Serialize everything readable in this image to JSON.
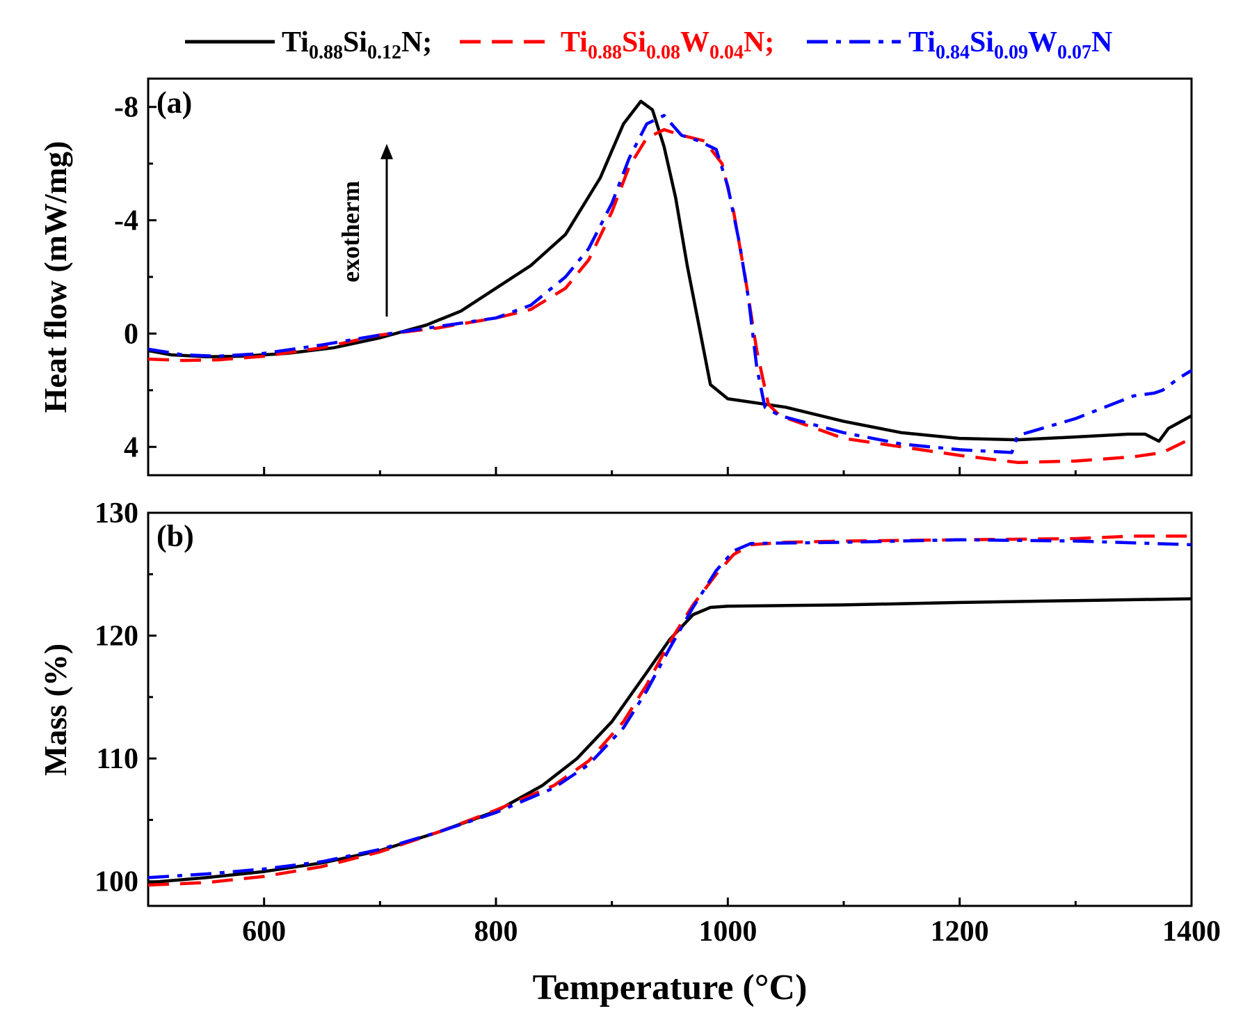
{
  "legend": {
    "entries": [
      {
        "series": "s1",
        "color": "#000000",
        "style": "solid",
        "parts": [
          [
            "Ti",
            ""
          ],
          [
            "0.88",
            "sub"
          ],
          [
            "Si",
            ""
          ],
          [
            "0.12",
            "sub"
          ],
          [
            "N;",
            ""
          ]
        ]
      },
      {
        "series": "s2",
        "color": "#ff0000",
        "style": "dash",
        "parts": [
          [
            "Ti",
            ""
          ],
          [
            "0.88",
            "sub"
          ],
          [
            "Si",
            ""
          ],
          [
            "0.08",
            "sub"
          ],
          [
            "W",
            ""
          ],
          [
            "0.04",
            "sub"
          ],
          [
            "N;",
            ""
          ]
        ]
      },
      {
        "series": "s3",
        "color": "#0000ff",
        "style": "dashdot",
        "parts": [
          [
            "Ti",
            ""
          ],
          [
            "0.84",
            "sub"
          ],
          [
            "Si",
            ""
          ],
          [
            "0.09",
            "sub"
          ],
          [
            "W",
            ""
          ],
          [
            "0.07",
            "sub"
          ],
          [
            "N",
            ""
          ]
        ]
      }
    ]
  },
  "chart_data": [
    {
      "type": "line",
      "panel_label": "(a)",
      "ylabel": "Heat flow (mW/mg)",
      "xlabel": "",
      "xlim": [
        500,
        1400
      ],
      "ylim": [
        5,
        -9
      ],
      "y_inverted": true,
      "yticks": [
        -8,
        -4,
        0,
        4
      ],
      "ytick_labels": [
        "-8",
        "-4",
        "0",
        "4"
      ],
      "annotation": {
        "text": "exotherm",
        "arrow": "up",
        "x": 665,
        "y_from": -0.6,
        "y_to": -6.6
      },
      "series": [
        {
          "id": "s1",
          "name": "Ti0.88Si0.12N",
          "color": "#000000",
          "style": "solid",
          "points": [
            [
              500,
              0.6
            ],
            [
              520,
              0.75
            ],
            [
              550,
              0.82
            ],
            [
              580,
              0.8
            ],
            [
              620,
              0.7
            ],
            [
              660,
              0.5
            ],
            [
              700,
              0.15
            ],
            [
              740,
              -0.3
            ],
            [
              770,
              -0.8
            ],
            [
              800,
              -1.6
            ],
            [
              830,
              -2.4
            ],
            [
              860,
              -3.5
            ],
            [
              890,
              -5.5
            ],
            [
              910,
              -7.4
            ],
            [
              925,
              -8.2
            ],
            [
              935,
              -7.9
            ],
            [
              945,
              -6.6
            ],
            [
              955,
              -4.8
            ],
            [
              965,
              -2.4
            ],
            [
              975,
              -0.3
            ],
            [
              985,
              1.8
            ],
            [
              1000,
              2.3
            ],
            [
              1050,
              2.6
            ],
            [
              1100,
              3.1
            ],
            [
              1150,
              3.5
            ],
            [
              1200,
              3.7
            ],
            [
              1250,
              3.75
            ],
            [
              1300,
              3.65
            ],
            [
              1345,
              3.55
            ],
            [
              1360,
              3.55
            ],
            [
              1372,
              3.8
            ],
            [
              1380,
              3.35
            ],
            [
              1400,
              2.9
            ]
          ]
        },
        {
          "id": "s2",
          "name": "Ti0.88Si0.08W0.04N",
          "color": "#ff0000",
          "style": "dash",
          "points": [
            [
              500,
              0.9
            ],
            [
              530,
              0.95
            ],
            [
              560,
              0.93
            ],
            [
              600,
              0.8
            ],
            [
              650,
              0.5
            ],
            [
              700,
              0.05
            ],
            [
              750,
              -0.2
            ],
            [
              800,
              -0.55
            ],
            [
              830,
              -0.85
            ],
            [
              860,
              -1.6
            ],
            [
              880,
              -2.6
            ],
            [
              900,
              -4.3
            ],
            [
              915,
              -5.9
            ],
            [
              930,
              -6.9
            ],
            [
              945,
              -7.2
            ],
            [
              960,
              -7.0
            ],
            [
              980,
              -6.8
            ],
            [
              995,
              -6.0
            ],
            [
              1005,
              -4.3
            ],
            [
              1015,
              -2.0
            ],
            [
              1025,
              0.6
            ],
            [
              1035,
              2.5
            ],
            [
              1045,
              2.9
            ],
            [
              1100,
              3.7
            ],
            [
              1150,
              4.0
            ],
            [
              1200,
              4.3
            ],
            [
              1250,
              4.55
            ],
            [
              1300,
              4.5
            ],
            [
              1350,
              4.35
            ],
            [
              1375,
              4.2
            ],
            [
              1400,
              3.7
            ]
          ]
        },
        {
          "id": "s3",
          "name": "Ti0.84Si0.09W0.07N",
          "color": "#0000ff",
          "style": "dashdot",
          "points": [
            [
              500,
              0.55
            ],
            [
              530,
              0.75
            ],
            [
              560,
              0.8
            ],
            [
              600,
              0.7
            ],
            [
              650,
              0.4
            ],
            [
              700,
              0.05
            ],
            [
              750,
              -0.25
            ],
            [
              800,
              -0.55
            ],
            [
              830,
              -1.0
            ],
            [
              860,
              -2.0
            ],
            [
              880,
              -3.0
            ],
            [
              900,
              -4.6
            ],
            [
              915,
              -6.2
            ],
            [
              930,
              -7.4
            ],
            [
              945,
              -7.7
            ],
            [
              960,
              -7.0
            ],
            [
              975,
              -6.8
            ],
            [
              990,
              -6.5
            ],
            [
              1000,
              -5.2
            ],
            [
              1010,
              -3.2
            ],
            [
              1018,
              -1.2
            ],
            [
              1025,
              1.2
            ],
            [
              1032,
              2.6
            ],
            [
              1045,
              2.9
            ],
            [
              1100,
              3.5
            ],
            [
              1150,
              3.9
            ],
            [
              1200,
              4.1
            ],
            [
              1245,
              4.2
            ],
            [
              1250,
              3.6
            ],
            [
              1300,
              3.0
            ],
            [
              1350,
              2.2
            ],
            [
              1368,
              2.1
            ],
            [
              1375,
              2.0
            ],
            [
              1390,
              1.55
            ],
            [
              1400,
              1.3
            ]
          ]
        }
      ]
    },
    {
      "type": "line",
      "panel_label": "(b)",
      "ylabel": "Mass (%)",
      "xlabel": "Temperature (°C)",
      "xlim": [
        500,
        1400
      ],
      "ylim": [
        98,
        130
      ],
      "yticks": [
        100,
        110,
        120,
        130
      ],
      "ytick_labels": [
        "100",
        "110",
        "120",
        "130"
      ],
      "xticks": [
        600,
        800,
        1000,
        1200,
        1400
      ],
      "xtick_labels": [
        "600",
        "800",
        "1000",
        "1200",
        "1400"
      ],
      "series": [
        {
          "id": "s1",
          "name": "Ti0.88Si0.12N",
          "color": "#000000",
          "style": "solid",
          "points": [
            [
              500,
              99.9
            ],
            [
              550,
              100.3
            ],
            [
              600,
              100.8
            ],
            [
              650,
              101.5
            ],
            [
              700,
              102.5
            ],
            [
              750,
              104.0
            ],
            [
              800,
              105.7
            ],
            [
              840,
              107.8
            ],
            [
              870,
              110.0
            ],
            [
              900,
              113.0
            ],
            [
              930,
              117.0
            ],
            [
              950,
              119.7
            ],
            [
              970,
              121.7
            ],
            [
              985,
              122.3
            ],
            [
              1000,
              122.4
            ],
            [
              1100,
              122.5
            ],
            [
              1200,
              122.7
            ],
            [
              1300,
              122.85
            ],
            [
              1400,
              123.0
            ]
          ]
        },
        {
          "id": "s2",
          "name": "Ti0.88Si0.08W0.04N",
          "color": "#ff0000",
          "style": "dash",
          "points": [
            [
              500,
              99.7
            ],
            [
              550,
              99.9
            ],
            [
              600,
              100.4
            ],
            [
              650,
              101.2
            ],
            [
              700,
              102.4
            ],
            [
              750,
              104.0
            ],
            [
              800,
              105.8
            ],
            [
              850,
              107.8
            ],
            [
              880,
              109.8
            ],
            [
              910,
              113.0
            ],
            [
              930,
              116.0
            ],
            [
              950,
              119.5
            ],
            [
              970,
              122.5
            ],
            [
              990,
              125.0
            ],
            [
              1005,
              126.6
            ],
            [
              1020,
              127.4
            ],
            [
              1050,
              127.6
            ],
            [
              1100,
              127.7
            ],
            [
              1200,
              127.8
            ],
            [
              1300,
              127.9
            ],
            [
              1350,
              128.1
            ],
            [
              1400,
              128.1
            ]
          ]
        },
        {
          "id": "s3",
          "name": "Ti0.84Si0.09W0.07N",
          "color": "#0000ff",
          "style": "dashdot",
          "points": [
            [
              500,
              100.3
            ],
            [
              550,
              100.6
            ],
            [
              600,
              101.0
            ],
            [
              650,
              101.6
            ],
            [
              700,
              102.6
            ],
            [
              750,
              104.0
            ],
            [
              800,
              105.6
            ],
            [
              850,
              107.6
            ],
            [
              880,
              109.5
            ],
            [
              910,
              112.5
            ],
            [
              930,
              115.5
            ],
            [
              950,
              119.0
            ],
            [
              970,
              122.3
            ],
            [
              990,
              125.3
            ],
            [
              1005,
              126.9
            ],
            [
              1020,
              127.5
            ],
            [
              1100,
              127.6
            ],
            [
              1200,
              127.8
            ],
            [
              1300,
              127.7
            ],
            [
              1400,
              127.4
            ]
          ]
        }
      ]
    }
  ]
}
